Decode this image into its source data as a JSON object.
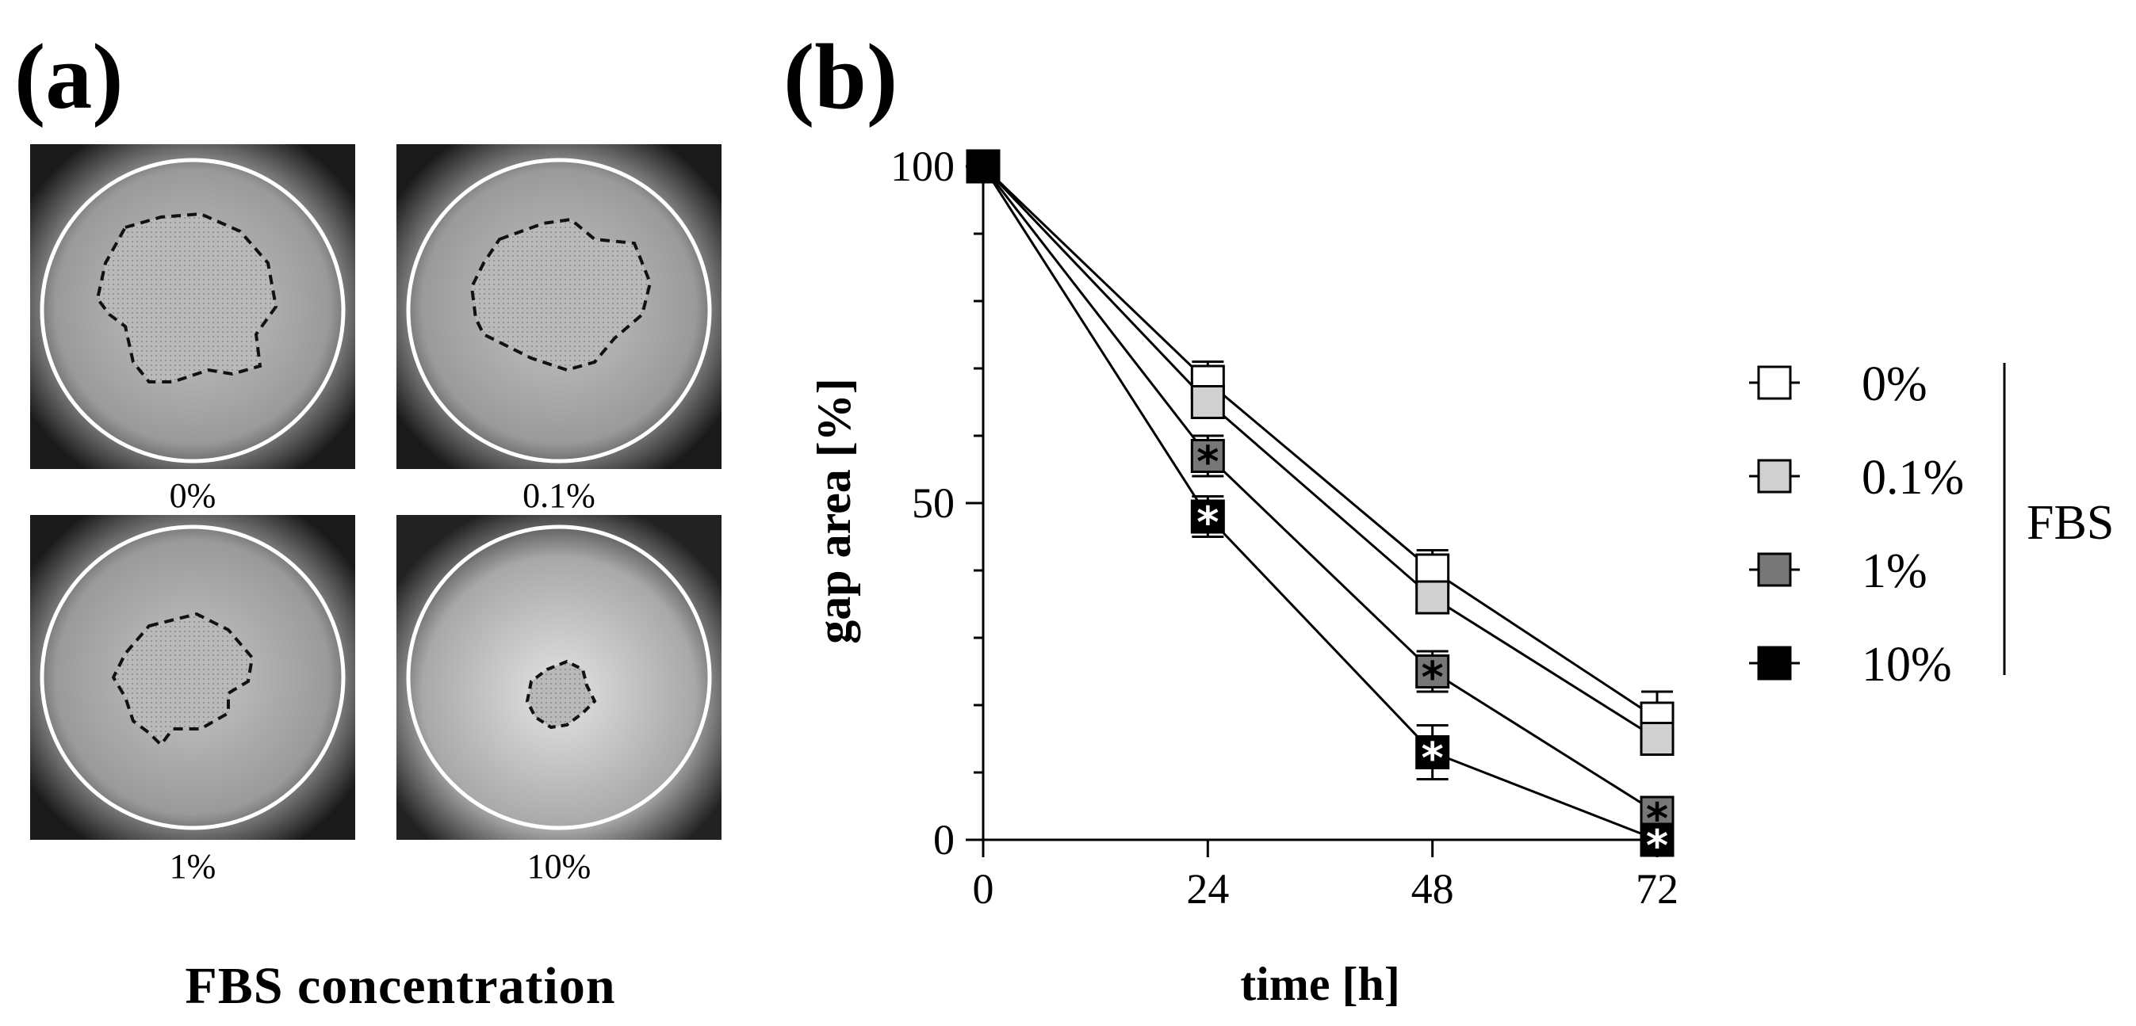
{
  "panel_a": {
    "label": "(a)",
    "images": [
      {
        "caption": "0%"
      },
      {
        "caption": "0.1%"
      },
      {
        "caption": "1%"
      },
      {
        "caption": "10%"
      }
    ],
    "xlabel": "FBS concentration"
  },
  "panel_b": {
    "label": "(b)"
  },
  "chart_data": {
    "type": "line",
    "x": [
      0,
      24,
      48,
      72
    ],
    "xticks": [
      "0",
      "24",
      "48",
      "72"
    ],
    "yticks": [
      "0",
      "50",
      "100"
    ],
    "xlabel": "time [h]",
    "ylabel": "gap area [%]",
    "xlim": [
      0,
      72
    ],
    "ylim": [
      0,
      100
    ],
    "grid": false,
    "legend_position": "right",
    "legend_group_label": "FBS",
    "series": [
      {
        "name": "0%",
        "values": [
          100,
          68,
          40,
          18
        ],
        "errors": [
          0,
          3,
          3,
          4
        ],
        "color": "#ffffff",
        "marker_text": [
          "",
          "",
          "",
          ""
        ]
      },
      {
        "name": "0.1%",
        "values": [
          100,
          65,
          36,
          15
        ],
        "errors": [
          0,
          2,
          2,
          2
        ],
        "color": "#d0d0d0",
        "marker_text": [
          "",
          "",
          "",
          ""
        ]
      },
      {
        "name": "1%",
        "values": [
          100,
          57,
          25,
          4
        ],
        "errors": [
          0,
          3,
          3,
          2
        ],
        "color": "#777777",
        "marker_text": [
          "",
          "*",
          "*",
          "*"
        ]
      },
      {
        "name": "10%",
        "values": [
          100,
          48,
          13,
          0
        ],
        "errors": [
          0,
          3,
          4,
          1
        ],
        "color": "#000000",
        "marker_text": [
          "",
          "*",
          "*",
          "*"
        ]
      }
    ]
  }
}
